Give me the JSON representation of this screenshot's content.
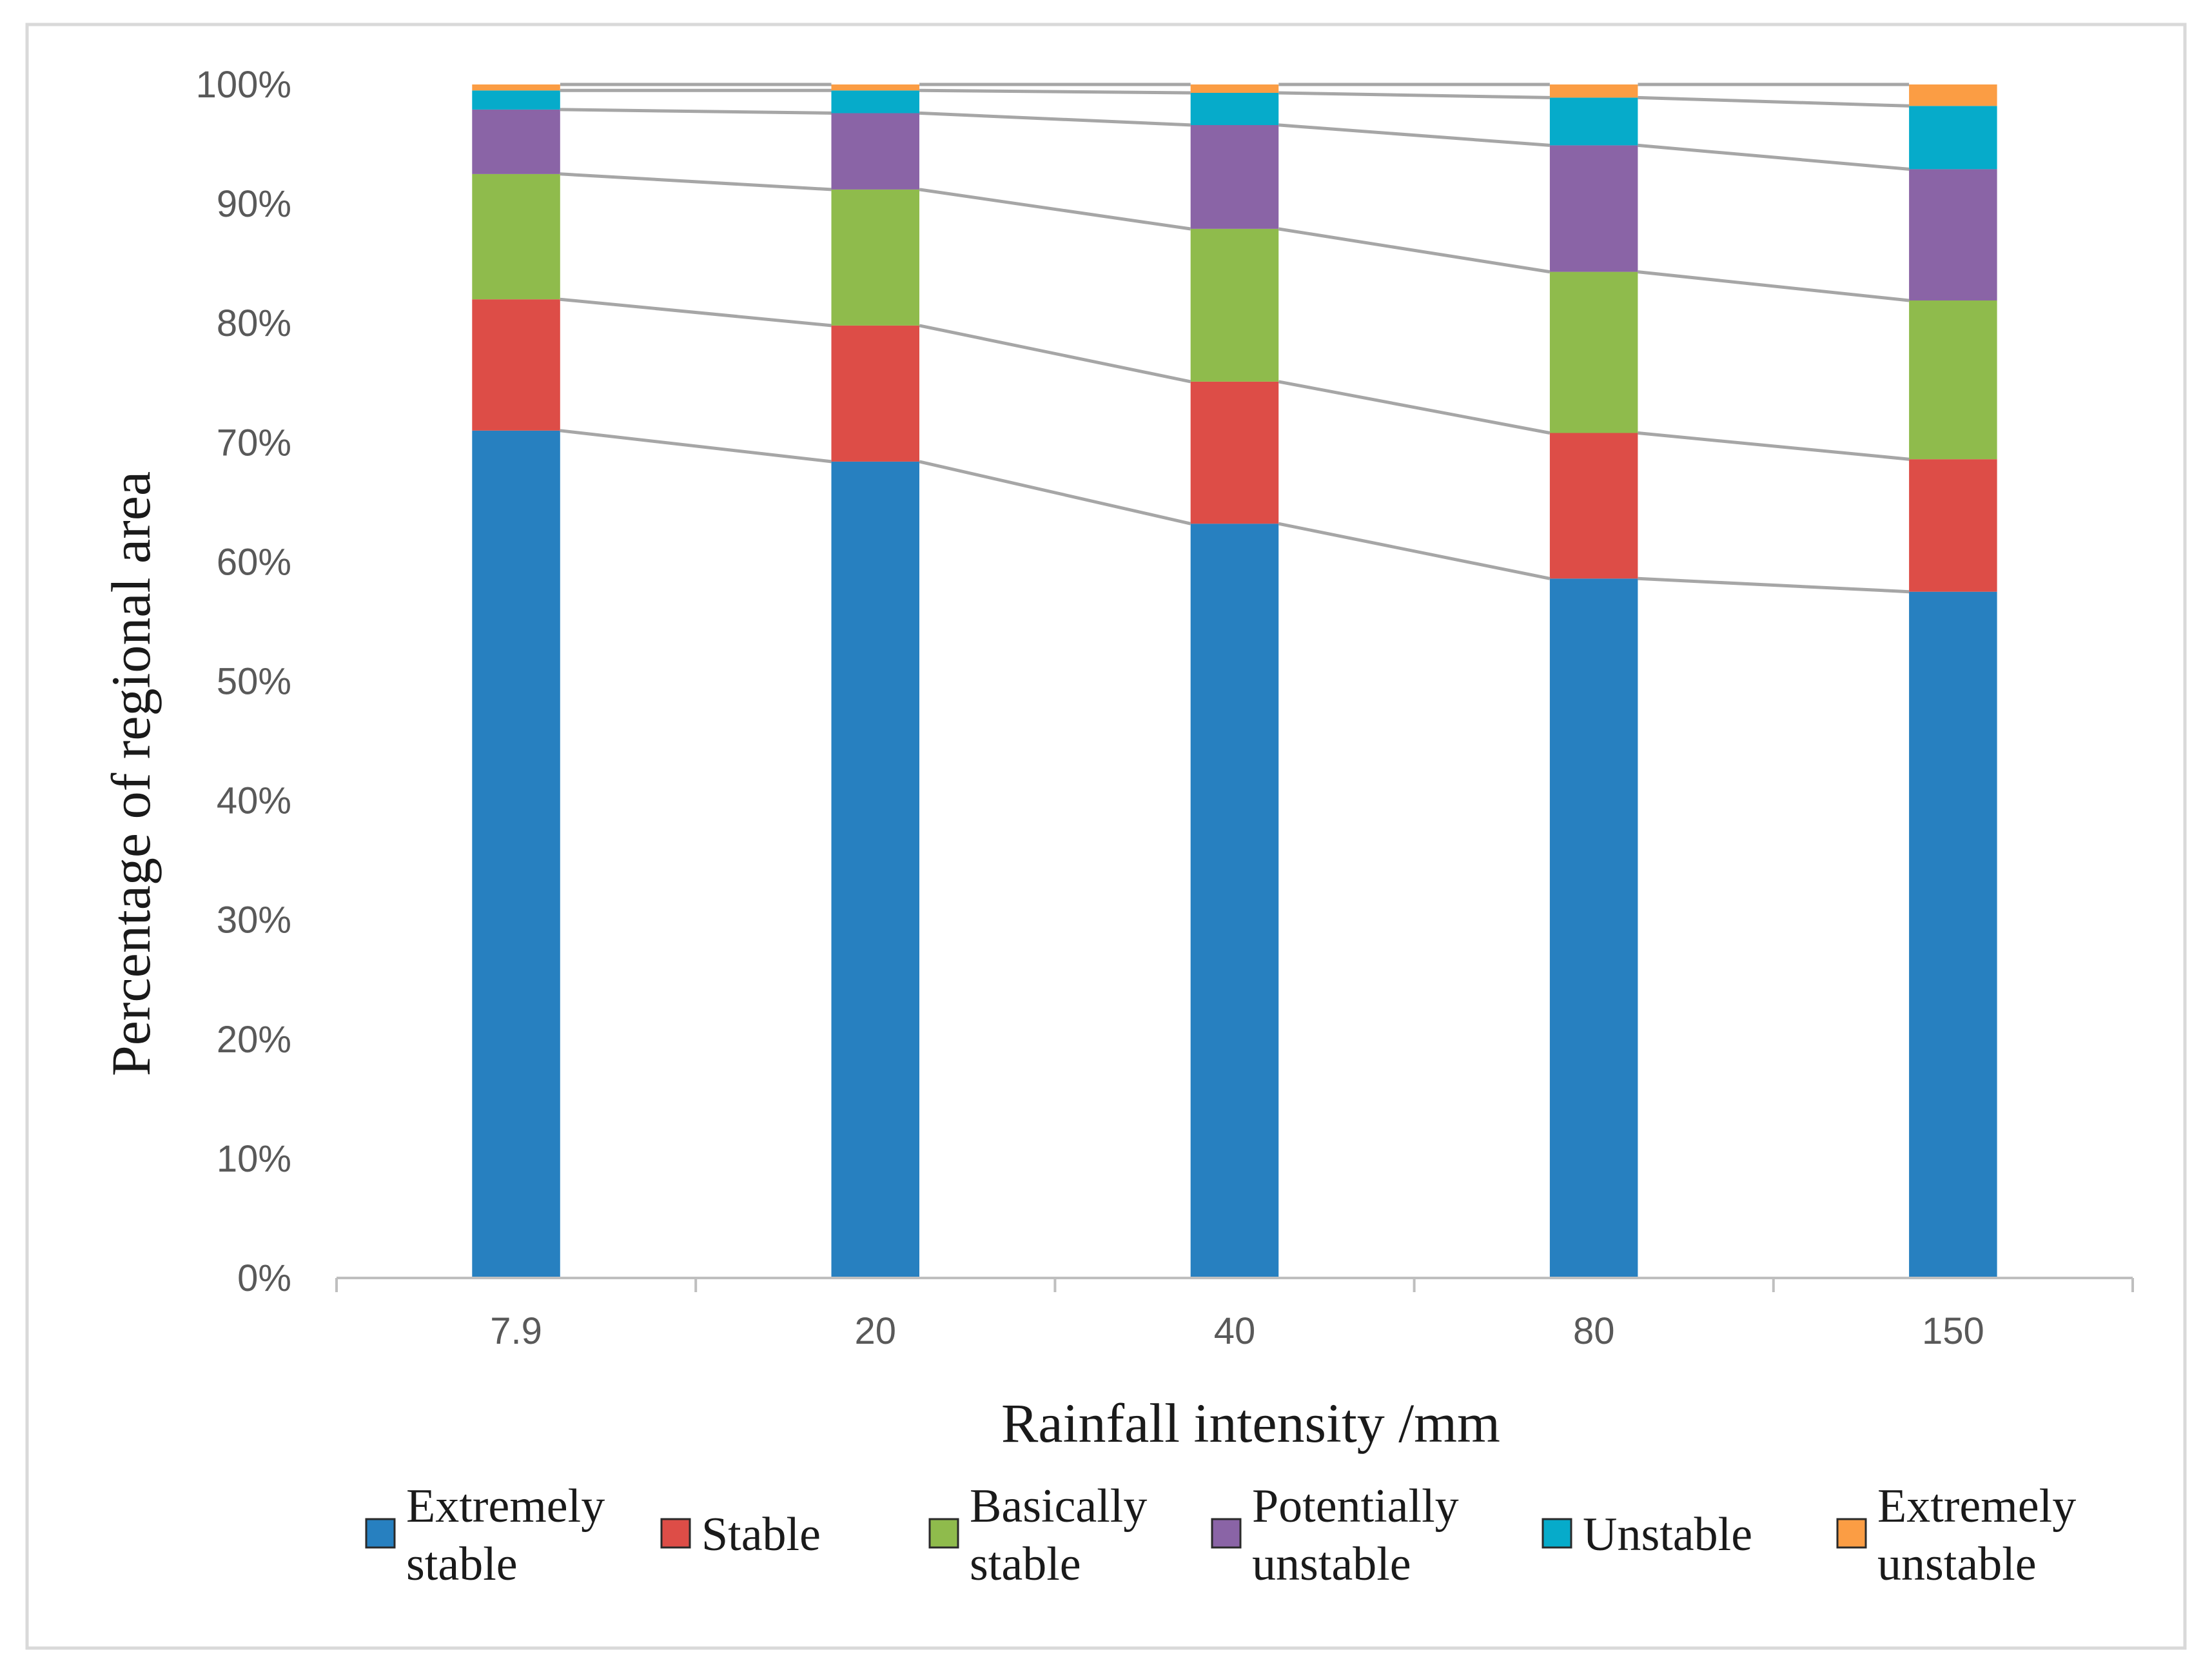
{
  "chart_data": {
    "type": "bar",
    "stacked": true,
    "percent": true,
    "categories": [
      "7.9",
      "20",
      "40",
      "80",
      "150"
    ],
    "series": [
      {
        "name": "Extremely stable",
        "color": "#2780c0",
        "values": [
          71.0,
          68.4,
          63.2,
          58.6,
          57.5
        ]
      },
      {
        "name": "Stable",
        "color": "#dd4d47",
        "values": [
          11.0,
          11.4,
          11.9,
          12.2,
          11.1
        ]
      },
      {
        "name": "Basically stable",
        "color": "#8fbb4c",
        "values": [
          10.5,
          11.4,
          12.8,
          13.5,
          13.3
        ]
      },
      {
        "name": "Potentially unstable",
        "color": "#8a64a6",
        "values": [
          5.4,
          6.4,
          8.7,
          10.6,
          11.0
        ]
      },
      {
        "name": "Unstable",
        "color": "#06abca",
        "values": [
          1.6,
          1.9,
          2.7,
          4.0,
          5.3
        ]
      },
      {
        "name": "Extremely unstable",
        "color": "#fb9d44",
        "values": [
          0.5,
          0.5,
          0.7,
          1.1,
          1.8
        ]
      }
    ],
    "series_label_lines": [
      [
        "Extremely",
        "stable"
      ],
      [
        "Stable"
      ],
      [
        "Basically",
        "stable"
      ],
      [
        "Potentially",
        "unstable"
      ],
      [
        "Unstable"
      ],
      [
        "Extremely",
        "unstable"
      ]
    ],
    "yticks": [
      "0%",
      "10%",
      "20%",
      "30%",
      "40%",
      "50%",
      "60%",
      "70%",
      "80%",
      "90%",
      "100%"
    ],
    "ylim": [
      0,
      100
    ],
    "xlabel": "Rainfall intensity /mm",
    "ylabel": "Percentage of regional area",
    "legend_position": "bottom",
    "series_lines": true,
    "grid": false
  }
}
